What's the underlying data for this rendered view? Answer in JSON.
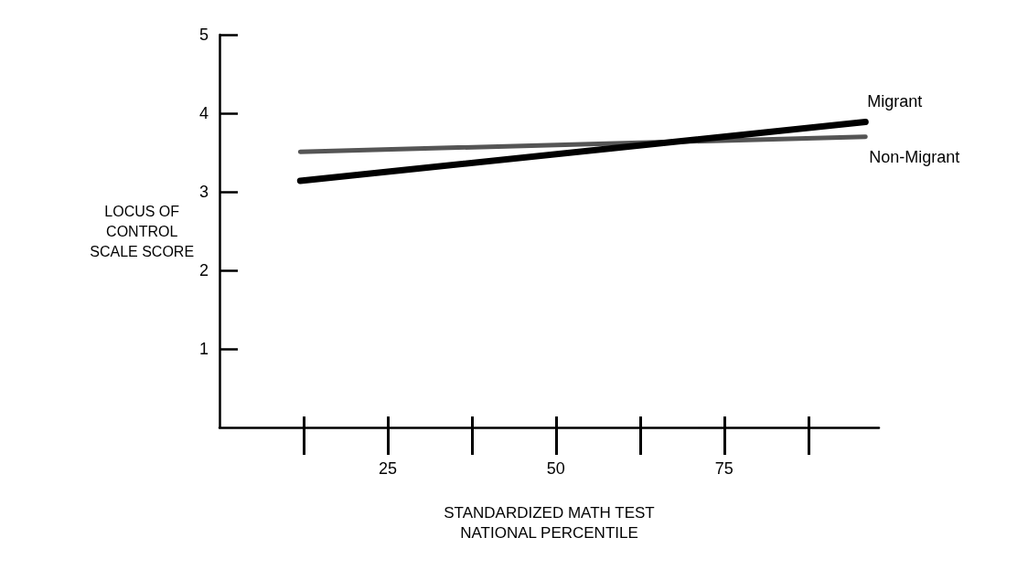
{
  "chart_data": {
    "type": "line",
    "xlabel": "STANDARDIZED MATH TEST\nNATIONAL PERCENTILE",
    "ylabel": "LOCUS OF\nCONTROL\nSCALE SCORE",
    "x": [
      12,
      96
    ],
    "series": [
      {
        "name": "Migrant",
        "color": "#000000",
        "values": [
          3.14,
          3.89
        ]
      },
      {
        "name": "Non-Migrant",
        "color": "#555555",
        "values": [
          3.51,
          3.7
        ]
      }
    ],
    "xlim": [
      0,
      98
    ],
    "xticks": [
      {
        "value": 12.5,
        "label": null
      },
      25,
      {
        "value": 37.5,
        "label": null
      },
      50,
      {
        "value": 62.5,
        "label": null
      },
      75,
      {
        "value": 87.5,
        "label": null
      }
    ],
    "ylim": [
      0,
      5
    ],
    "yticks": [
      1,
      2,
      3,
      4,
      5
    ],
    "grid": false,
    "legend": false,
    "marker": "none",
    "line_style": "solid"
  }
}
